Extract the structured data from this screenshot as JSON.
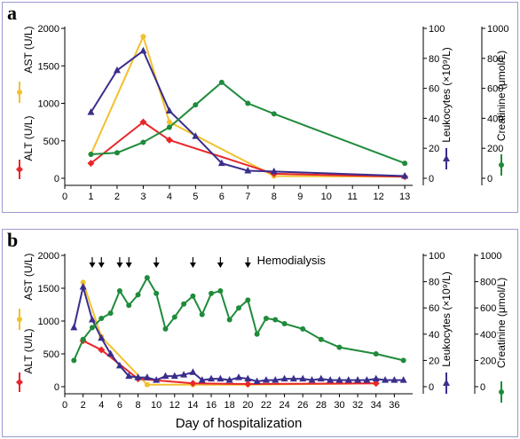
{
  "figure": {
    "panels": [
      "a",
      "b"
    ],
    "xlabel": "Day of hospitalization",
    "annotation": "Hemodialysis"
  },
  "legend_labels": {
    "alt": "ALT (U/L)",
    "ast": "AST (U/L)",
    "leukocytes": "Leukocytes (×10⁹/L)",
    "creatinine": "Creatinine (μmol/L)"
  },
  "colors": {
    "ast": "#f2c12e",
    "alt": "#e8262a",
    "leukocytes": "#3a2e8c",
    "creatinine": "#1f8b3b",
    "frame": "#9a9ad0"
  },
  "chart_data": [
    {
      "panel": "a",
      "type": "line",
      "xlim": [
        0,
        13.3
      ],
      "xticks": [
        0,
        1,
        2,
        3,
        4,
        5,
        6,
        7,
        8,
        9,
        10,
        11,
        12,
        13
      ],
      "axes": {
        "enzymes": {
          "label": "AST (U/L) / ALT (U/L)",
          "ylim": [
            0,
            2000
          ],
          "ticks": [
            0,
            500,
            1000,
            1500,
            2000
          ]
        },
        "leukocytes": {
          "label": "Leukocytes (×10⁹/L)",
          "ylim": [
            0,
            100
          ],
          "ticks": [
            0,
            20,
            40,
            60,
            80,
            100
          ]
        },
        "creatinine": {
          "label": "Creatinine (μmol/L)",
          "ylim": [
            0,
            1000
          ],
          "ticks": [
            0,
            200,
            400,
            600,
            800,
            1000
          ]
        }
      },
      "series": [
        {
          "name": "AST (U/L)",
          "key": "ast",
          "axis": "enzymes",
          "marker": "circle",
          "x": [
            1,
            3,
            4,
            8,
            13
          ],
          "y": [
            320,
            1890,
            750,
            30,
            20
          ]
        },
        {
          "name": "ALT (U/L)",
          "key": "alt",
          "axis": "enzymes",
          "marker": "diamond",
          "x": [
            1,
            3,
            4,
            8,
            13
          ],
          "y": [
            200,
            750,
            510,
            60,
            20
          ]
        },
        {
          "name": "Leukocytes (×10⁹/L)",
          "key": "leukocytes",
          "axis": "leukocytes",
          "marker": "triangle",
          "x": [
            1,
            2,
            3,
            4,
            5,
            6,
            7,
            8,
            13
          ],
          "y": [
            44,
            72,
            85,
            45,
            28,
            10,
            5,
            4.5,
            1.5
          ]
        },
        {
          "name": "Creatinine (μmol/L)",
          "key": "creatinine",
          "axis": "creatinine",
          "marker": "circle",
          "x": [
            1,
            2,
            3,
            4,
            5,
            6,
            7,
            8,
            13
          ],
          "y": [
            160,
            170,
            240,
            340,
            490,
            640,
            500,
            430,
            100
          ]
        }
      ]
    },
    {
      "panel": "b",
      "type": "line",
      "xlim": [
        0,
        38
      ],
      "xticks": [
        0,
        2,
        4,
        6,
        8,
        10,
        12,
        14,
        16,
        18,
        20,
        22,
        24,
        26,
        28,
        30,
        32,
        34,
        36
      ],
      "hemodialysis_days": [
        3,
        4,
        6,
        7,
        10,
        14,
        17,
        20
      ],
      "axes": {
        "enzymes": {
          "label": "AST (U/L) / ALT (U/L)",
          "ylim": [
            0,
            2000
          ],
          "ticks": [
            0,
            500,
            1000,
            1500,
            2000
          ]
        },
        "leukocytes": {
          "label": "Leukocytes (×10⁹/L)",
          "ylim": [
            0,
            100
          ],
          "ticks": [
            0,
            20,
            40,
            60,
            80,
            100
          ]
        },
        "creatinine": {
          "label": "Creatinine (μmol/L)",
          "ylim": [
            0,
            1000
          ],
          "ticks": [
            0,
            200,
            400,
            600,
            800,
            1000
          ]
        }
      },
      "series": [
        {
          "name": "AST (U/L)",
          "key": "ast",
          "axis": "enzymes",
          "marker": "circle",
          "x": [
            2,
            4,
            9,
            14,
            20,
            34
          ],
          "y": [
            1590,
            760,
            30,
            30,
            30,
            50
          ]
        },
        {
          "name": "ALT (U/L)",
          "key": "alt",
          "axis": "enzymes",
          "marker": "diamond",
          "x": [
            2,
            4,
            8,
            14,
            20,
            34
          ],
          "y": [
            700,
            560,
            120,
            50,
            40,
            50
          ]
        },
        {
          "name": "Leukocytes (×10⁹/L)",
          "key": "leukocytes",
          "axis": "leukocytes",
          "marker": "triangle",
          "x": [
            1,
            2,
            3,
            4,
            5,
            6,
            7,
            8,
            9,
            10,
            11,
            12,
            13,
            14,
            15,
            16,
            17,
            18,
            19,
            20,
            21,
            22,
            23,
            24,
            25,
            26,
            27,
            28,
            29,
            30,
            31,
            32,
            33,
            34,
            35,
            36,
            37
          ],
          "y": [
            45,
            76,
            51,
            37,
            25,
            16,
            8,
            7,
            7,
            5,
            8,
            8,
            9,
            11,
            5,
            6,
            6,
            5,
            7,
            6,
            4,
            5,
            5,
            6,
            6,
            6,
            5,
            6,
            5,
            5,
            5,
            5,
            5,
            6,
            5,
            5,
            5
          ]
        },
        {
          "name": "Creatinine (μmol/L)",
          "key": "creatinine",
          "axis": "creatinine",
          "marker": "circle",
          "x": [
            1,
            2,
            3,
            4,
            5,
            6,
            7,
            8,
            9,
            10,
            11,
            12,
            13,
            14,
            15,
            16,
            17,
            18,
            19,
            20,
            21,
            22,
            23,
            24,
            26,
            28,
            30,
            34,
            37
          ],
          "y": [
            200,
            360,
            450,
            520,
            560,
            730,
            620,
            700,
            830,
            710,
            440,
            530,
            630,
            690,
            550,
            710,
            730,
            510,
            600,
            660,
            400,
            520,
            510,
            480,
            440,
            360,
            300,
            250,
            200
          ]
        }
      ]
    }
  ]
}
